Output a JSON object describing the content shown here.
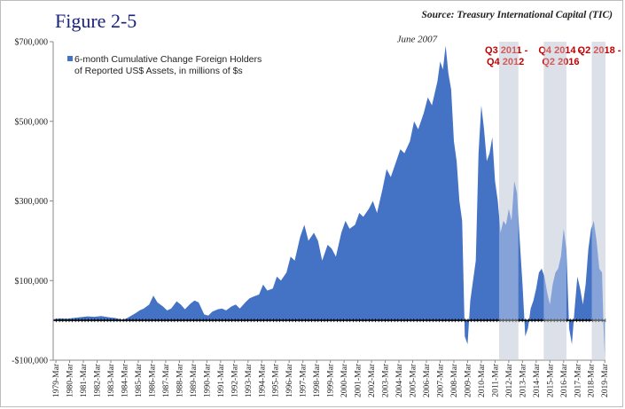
{
  "figure_label": "Figure 2-5",
  "source": "Source: Treasury International  Capital  (TIC)",
  "colors": {
    "area": "#4472c4",
    "recession": "#c9d0dc",
    "red_text": "#c00000",
    "baseline": "#000000"
  },
  "chart_data": {
    "type": "area",
    "title": "",
    "xlabel": "",
    "ylabel": "",
    "ylim": [
      -100000,
      700000
    ],
    "yticks": [
      -100000,
      100000,
      300000,
      500000,
      700000
    ],
    "ytick_labels": [
      "-$100,000",
      "$100,000",
      "$300,000",
      "$500,000",
      "$700,000"
    ],
    "xlim": [
      1979.0,
      2019.25
    ],
    "xtick_labels": [
      "1979-Mar",
      "1980-Mar",
      "1981-Mar",
      "1982-Mar",
      "1983-Mar",
      "1984-Mar",
      "1985-Mar",
      "1986-Mar",
      "1987-Mar",
      "1988-Mar",
      "1989-Mar",
      "1990-Mar",
      "1991-Mar",
      "1992-Mar",
      "1993-Mar",
      "1994-Mar",
      "1995-Mar",
      "1996-Mar",
      "1997-Mar",
      "1998-Mar",
      "1999-Mar",
      "2000-Mar",
      "2001-Mar",
      "2002-Mar",
      "2003-Mar",
      "2004-Mar",
      "2005-Mar",
      "2006-Mar",
      "2007-Mar",
      "2008-Mar",
      "2009-Mar",
      "2010-Mar",
      "2011-Mar",
      "2012-Mar",
      "2013-Mar",
      "2014-Mar",
      "2015-Mar",
      "2016-Mar",
      "2017-Mar",
      "2018-Mar",
      "2019-Mar"
    ],
    "legend": {
      "placement": "top-left",
      "label": "6-month Cumulative Change Foreign Holders\nof Reported US$ Assets, in millions of $s"
    },
    "grid": false,
    "series": [
      {
        "name": "6-month Cumulative Change Foreign Holders of Reported US$ Assets, in millions of $s",
        "x": [
          1979.0,
          1979.5,
          1980.0,
          1980.5,
          1981.0,
          1981.5,
          1982.0,
          1982.5,
          1983.0,
          1983.5,
          1984.0,
          1984.3,
          1984.6,
          1985.0,
          1985.3,
          1985.6,
          1986.0,
          1986.3,
          1986.6,
          1987.0,
          1987.3,
          1987.6,
          1988.0,
          1988.3,
          1988.6,
          1989.0,
          1989.3,
          1989.6,
          1990.0,
          1990.3,
          1990.6,
          1991.0,
          1991.3,
          1991.6,
          1992.0,
          1992.3,
          1992.6,
          1993.0,
          1993.3,
          1993.6,
          1994.0,
          1994.3,
          1994.6,
          1995.0,
          1995.3,
          1995.6,
          1996.0,
          1996.3,
          1996.6,
          1997.0,
          1997.3,
          1997.6,
          1998.0,
          1998.3,
          1998.6,
          1999.0,
          1999.3,
          1999.6,
          2000.0,
          2000.3,
          2000.6,
          2001.0,
          2001.3,
          2001.6,
          2002.0,
          2002.3,
          2002.6,
          2003.0,
          2003.3,
          2003.6,
          2004.0,
          2004.3,
          2004.6,
          2005.0,
          2005.3,
          2005.6,
          2006.0,
          2006.3,
          2006.6,
          2007.0,
          2007.2,
          2007.4,
          2007.6,
          2007.8,
          2008.0,
          2008.2,
          2008.4,
          2008.6,
          2008.8,
          2009.0,
          2009.2,
          2009.4,
          2009.6,
          2009.8,
          2010.0,
          2010.2,
          2010.4,
          2010.6,
          2010.8,
          2011.0,
          2011.2,
          2011.4,
          2011.6,
          2011.8,
          2012.0,
          2012.2,
          2012.4,
          2012.6,
          2012.8,
          2013.0,
          2013.2,
          2013.4,
          2013.6,
          2013.8,
          2014.0,
          2014.2,
          2014.4,
          2014.6,
          2014.8,
          2015.0,
          2015.2,
          2015.4,
          2015.6,
          2015.8,
          2016.0,
          2016.2,
          2016.4,
          2016.6,
          2016.8,
          2017.0,
          2017.2,
          2017.4,
          2017.6,
          2017.8,
          2018.0,
          2018.2,
          2018.4,
          2018.6,
          2018.8,
          2019.0,
          2019.1,
          2019.2
        ],
        "values": [
          3000,
          5000,
          4000,
          6000,
          8000,
          10000,
          9000,
          11000,
          8000,
          6000,
          2000,
          4000,
          10000,
          18000,
          25000,
          30000,
          40000,
          62000,
          45000,
          35000,
          25000,
          30000,
          48000,
          40000,
          28000,
          42000,
          50000,
          45000,
          15000,
          12000,
          22000,
          28000,
          30000,
          25000,
          35000,
          40000,
          30000,
          45000,
          55000,
          60000,
          65000,
          90000,
          75000,
          80000,
          110000,
          100000,
          120000,
          160000,
          150000,
          210000,
          240000,
          200000,
          220000,
          200000,
          150000,
          190000,
          180000,
          160000,
          220000,
          250000,
          230000,
          240000,
          270000,
          260000,
          280000,
          300000,
          270000,
          330000,
          380000,
          360000,
          400000,
          430000,
          420000,
          450000,
          500000,
          480000,
          520000,
          560000,
          540000,
          600000,
          650000,
          630000,
          690000,
          620000,
          580000,
          450000,
          400000,
          300000,
          250000,
          -40000,
          -60000,
          50000,
          100000,
          150000,
          420000,
          540000,
          480000,
          400000,
          420000,
          460000,
          350000,
          300000,
          220000,
          250000,
          240000,
          280000,
          250000,
          350000,
          320000,
          200000,
          90000,
          -40000,
          -20000,
          30000,
          50000,
          80000,
          120000,
          130000,
          110000,
          70000,
          40000,
          90000,
          120000,
          130000,
          160000,
          230000,
          180000,
          -20000,
          -60000,
          30000,
          110000,
          80000,
          40000,
          90000,
          180000,
          230000,
          250000,
          200000,
          130000,
          120000,
          -10000,
          -90000
        ]
      }
    ],
    "shaded_periods": [
      {
        "label": [
          "Q3 2011 -",
          "Q4 2012"
        ],
        "x0": 2011.5,
        "x1": 2012.9
      },
      {
        "label": [
          "Q4 2014 - ",
          "Q2 2016"
        ],
        "x0": 2014.75,
        "x1": 2016.4
      },
      {
        "label": [
          "Q2 2018 - "
        ],
        "x0": 2018.25,
        "x1": 2019.25
      }
    ],
    "annotations": [
      {
        "text": "June 2007",
        "x": 2007.4,
        "y": 690000
      }
    ]
  }
}
